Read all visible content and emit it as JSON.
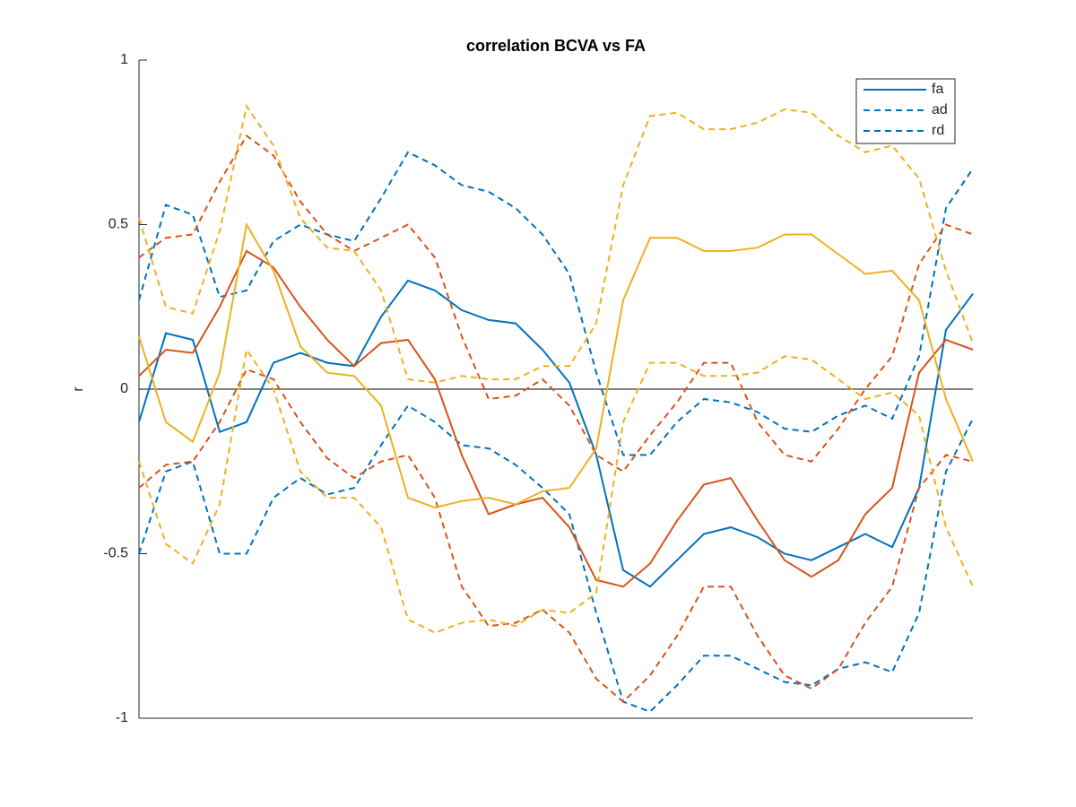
{
  "chart_data": {
    "type": "line",
    "title": "correlation BCVA vs FA",
    "y_label": "r",
    "x": [
      0,
      1,
      2,
      3,
      4,
      5,
      6,
      7,
      8,
      9,
      10,
      11,
      12,
      13,
      14,
      15,
      16,
      17,
      18,
      19,
      20,
      21,
      22,
      23,
      24,
      25,
      26,
      27,
      28,
      29,
      30,
      31
    ],
    "xlim": [
      0,
      31
    ],
    "ylim": [
      -1,
      1
    ],
    "yticks": [
      -1,
      -0.5,
      0,
      0.5,
      1
    ],
    "reference_line": 0,
    "legend": "upper right",
    "series": [
      {
        "name": "fa",
        "color": "#0072bd",
        "style": "solid",
        "values": [
          -0.1,
          0.17,
          0.15,
          -0.13,
          -0.1,
          0.08,
          0.11,
          0.08,
          0.07,
          0.22,
          0.33,
          0.3,
          0.24,
          0.21,
          0.2,
          0.12,
          0.02,
          -0.2,
          -0.55,
          -0.6,
          -0.52,
          -0.44,
          -0.42,
          -0.45,
          -0.5,
          -0.52,
          -0.48,
          -0.44,
          -0.48,
          -0.3,
          0.18,
          0.29
        ]
      },
      {
        "name": "ad",
        "color": "#0072bd",
        "style": "dashed",
        "values": [
          0.27,
          0.56,
          0.53,
          0.28,
          0.3,
          0.45,
          0.5,
          0.47,
          0.45,
          0.58,
          0.72,
          0.68,
          0.62,
          0.6,
          0.55,
          0.47,
          0.35,
          0.05,
          -0.2,
          -0.2,
          -0.1,
          -0.03,
          -0.04,
          -0.07,
          -0.12,
          -0.13,
          -0.08,
          -0.05,
          -0.09,
          0.1,
          0.55,
          0.67
        ]
      },
      {
        "name": "rd",
        "color": "#0072bd",
        "style": "dashed",
        "values": [
          -0.5,
          -0.25,
          -0.22,
          -0.5,
          -0.5,
          -0.33,
          -0.27,
          -0.32,
          -0.3,
          -0.17,
          -0.05,
          -0.1,
          -0.17,
          -0.18,
          -0.23,
          -0.3,
          -0.38,
          -0.68,
          -0.95,
          -0.98,
          -0.9,
          -0.81,
          -0.81,
          -0.85,
          -0.89,
          -0.9,
          -0.85,
          -0.83,
          -0.86,
          -0.68,
          -0.25,
          -0.09
        ]
      },
      {
        "color": "#d95319",
        "style": "solid",
        "values": [
          0.04,
          0.12,
          0.11,
          0.25,
          0.42,
          0.37,
          0.25,
          0.15,
          0.07,
          0.14,
          0.15,
          0.03,
          -0.2,
          -0.38,
          -0.35,
          -0.33,
          -0.42,
          -0.58,
          -0.6,
          -0.53,
          -0.4,
          -0.29,
          -0.27,
          -0.4,
          -0.52,
          -0.57,
          -0.52,
          -0.38,
          -0.3,
          0.05,
          0.15,
          0.12
        ]
      },
      {
        "color": "#d95319",
        "style": "dashed",
        "values": [
          0.4,
          0.46,
          0.47,
          0.63,
          0.77,
          0.71,
          0.57,
          0.47,
          0.42,
          0.46,
          0.5,
          0.4,
          0.16,
          -0.03,
          -0.02,
          0.03,
          -0.05,
          -0.2,
          -0.25,
          -0.14,
          -0.04,
          0.08,
          0.08,
          -0.1,
          -0.2,
          -0.22,
          -0.12,
          0.0,
          0.1,
          0.38,
          0.5,
          0.47
        ]
      },
      {
        "color": "#d95319",
        "style": "dashed",
        "values": [
          -0.3,
          -0.23,
          -0.22,
          -0.1,
          0.06,
          0.03,
          -0.1,
          -0.21,
          -0.27,
          -0.22,
          -0.2,
          -0.33,
          -0.6,
          -0.72,
          -0.71,
          -0.67,
          -0.74,
          -0.88,
          -0.95,
          -0.87,
          -0.75,
          -0.6,
          -0.6,
          -0.75,
          -0.87,
          -0.91,
          -0.85,
          -0.71,
          -0.6,
          -0.3,
          -0.2,
          -0.22
        ]
      },
      {
        "color": "#edb120",
        "style": "solid",
        "values": [
          0.16,
          -0.1,
          -0.16,
          0.05,
          0.5,
          0.36,
          0.13,
          0.05,
          0.04,
          -0.05,
          -0.33,
          -0.36,
          -0.34,
          -0.33,
          -0.35,
          -0.31,
          -0.3,
          -0.18,
          0.27,
          0.46,
          0.46,
          0.42,
          0.42,
          0.43,
          0.47,
          0.47,
          0.41,
          0.35,
          0.36,
          0.27,
          -0.03,
          -0.22
        ]
      },
      {
        "color": "#edb120",
        "style": "dashed",
        "values": [
          0.52,
          0.25,
          0.23,
          0.48,
          0.86,
          0.74,
          0.52,
          0.43,
          0.42,
          0.3,
          0.03,
          0.02,
          0.04,
          0.03,
          0.03,
          0.07,
          0.07,
          0.2,
          0.62,
          0.83,
          0.84,
          0.79,
          0.79,
          0.81,
          0.85,
          0.84,
          0.77,
          0.72,
          0.74,
          0.64,
          0.36,
          0.14
        ]
      },
      {
        "color": "#edb120",
        "style": "dashed",
        "values": [
          -0.22,
          -0.47,
          -0.53,
          -0.35,
          0.12,
          0.0,
          -0.25,
          -0.33,
          -0.33,
          -0.42,
          -0.7,
          -0.74,
          -0.71,
          -0.7,
          -0.72,
          -0.67,
          -0.68,
          -0.62,
          -0.1,
          0.08,
          0.08,
          0.04,
          0.04,
          0.05,
          0.1,
          0.09,
          0.03,
          -0.03,
          -0.01,
          -0.08,
          -0.42,
          -0.6
        ]
      }
    ]
  }
}
